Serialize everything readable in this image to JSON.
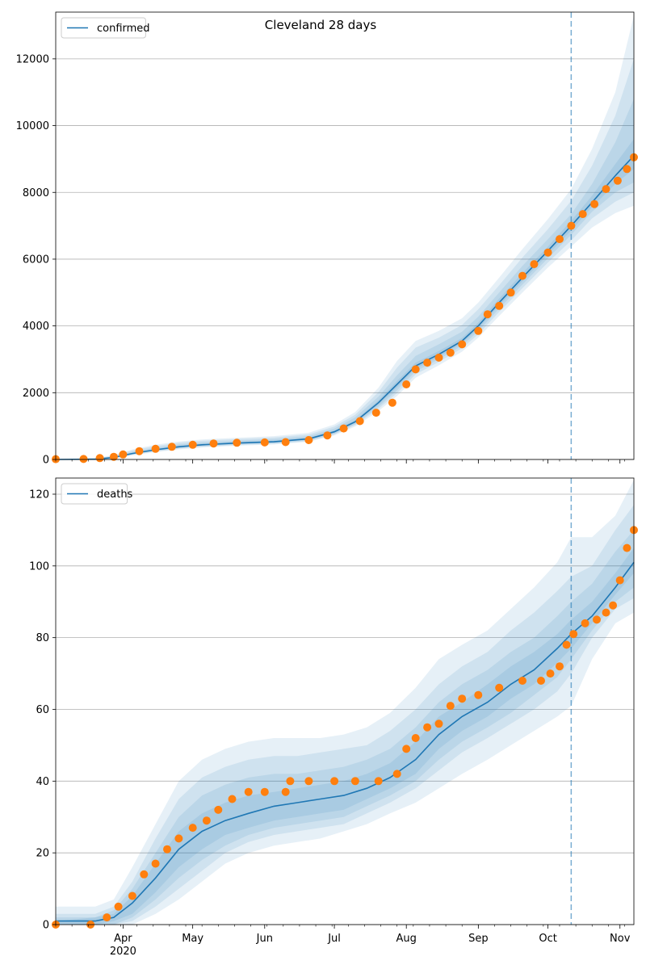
{
  "title": "Cleveland 28 days",
  "colors": {
    "model": "#1f77b4",
    "observed": "#ff7f0e",
    "band": "#1f77b4",
    "grid": "#b0b0b0",
    "vline": "#1f77b4"
  },
  "x_axis": {
    "range": [
      "2020-03-03",
      "2020-11-07"
    ],
    "tick_labels": [
      {
        "date": "2020-04-01",
        "label": "Apr",
        "sub": "2020"
      },
      {
        "date": "2020-05-01",
        "label": "May"
      },
      {
        "date": "2020-06-01",
        "label": "Jun"
      },
      {
        "date": "2020-07-01",
        "label": "Jul"
      },
      {
        "date": "2020-08-01",
        "label": "Aug"
      },
      {
        "date": "2020-09-01",
        "label": "Sep"
      },
      {
        "date": "2020-10-01",
        "label": "Oct"
      },
      {
        "date": "2020-11-01",
        "label": "Nov"
      }
    ],
    "forecast_start": "2020-10-11"
  },
  "chart_data": [
    {
      "type": "line",
      "legend": "confirmed",
      "legend_position": "top-left",
      "grid": "y",
      "ylim": [
        0,
        13400
      ],
      "yticks": [
        0,
        2000,
        4000,
        6000,
        8000,
        10000,
        12000
      ],
      "model_line": {
        "name": "confirmed",
        "dates": [
          "2020-03-03",
          "2020-03-20",
          "2020-03-28",
          "2020-04-05",
          "2020-04-15",
          "2020-04-25",
          "2020-05-05",
          "2020-05-20",
          "2020-06-05",
          "2020-06-20",
          "2020-07-01",
          "2020-07-10",
          "2020-07-20",
          "2020-07-28",
          "2020-08-05",
          "2020-08-15",
          "2020-08-25",
          "2020-09-01",
          "2020-09-10",
          "2020-09-20",
          "2020-10-01",
          "2020-10-11",
          "2020-10-20",
          "2020-10-30",
          "2020-11-07"
        ],
        "values": [
          0,
          10,
          60,
          180,
          290,
          380,
          440,
          490,
          530,
          620,
          830,
          1130,
          1700,
          2250,
          2800,
          3150,
          3550,
          4000,
          4700,
          5450,
          6250,
          7000,
          7700,
          8500,
          9100
        ]
      },
      "bands": [
        {
          "lower": [
            0,
            0,
            20,
            120,
            220,
            300,
            360,
            410,
            450,
            530,
            720,
            990,
            1450,
            1900,
            2450,
            2820,
            3230,
            3650,
            4300,
            5000,
            5750,
            6380,
            6950,
            7380,
            7600
          ],
          "upper": [
            0,
            40,
            130,
            300,
            440,
            540,
            600,
            650,
            700,
            800,
            1050,
            1420,
            2150,
            2950,
            3550,
            3850,
            4230,
            4700,
            5450,
            6300,
            7200,
            8100,
            9300,
            11000,
            13300
          ]
        },
        {
          "lower": [
            0,
            0,
            30,
            140,
            240,
            320,
            380,
            430,
            470,
            550,
            750,
            1030,
            1520,
            1990,
            2550,
            2920,
            3330,
            3750,
            4420,
            5130,
            5900,
            6560,
            7220,
            7720,
            8000
          ],
          "upper": [
            0,
            30,
            110,
            270,
            400,
            500,
            560,
            610,
            660,
            750,
            990,
            1340,
            2020,
            2750,
            3350,
            3650,
            4030,
            4500,
            5220,
            6050,
            6900,
            7750,
            8800,
            10300,
            12000
          ]
        },
        {
          "lower": [
            0,
            2,
            40,
            160,
            260,
            340,
            400,
            450,
            490,
            570,
            770,
            1060,
            1580,
            2070,
            2640,
            3000,
            3410,
            3840,
            4520,
            5240,
            6030,
            6730,
            7420,
            8000,
            8300
          ],
          "upper": [
            0,
            20,
            90,
            230,
            350,
            450,
            510,
            560,
            610,
            700,
            930,
            1260,
            1880,
            2520,
            3100,
            3450,
            3830,
            4280,
            5000,
            5800,
            6600,
            7350,
            8250,
            9500,
            10800
          ]
        },
        {
          "lower": [
            0,
            4,
            48,
            170,
            275,
            360,
            420,
            470,
            510,
            595,
            800,
            1095,
            1640,
            2160,
            2720,
            3070,
            3480,
            3920,
            4610,
            5340,
            6140,
            6860,
            7560,
            8250,
            8700
          ],
          "upper": [
            0,
            15,
            75,
            200,
            315,
            410,
            470,
            520,
            560,
            650,
            870,
            1180,
            1770,
            2350,
            2900,
            3250,
            3640,
            4100,
            4820,
            5580,
            6380,
            7150,
            7900,
            8850,
            9600
          ]
        }
      ],
      "observed": {
        "name": "",
        "dates": [
          "2020-03-03",
          "2020-03-15",
          "2020-03-22",
          "2020-03-28",
          "2020-04-01",
          "2020-04-08",
          "2020-04-15",
          "2020-04-22",
          "2020-05-01",
          "2020-05-10",
          "2020-05-20",
          "2020-06-01",
          "2020-06-10",
          "2020-06-20",
          "2020-06-28",
          "2020-07-05",
          "2020-07-12",
          "2020-07-19",
          "2020-07-26",
          "2020-08-01",
          "2020-08-05",
          "2020-08-10",
          "2020-08-15",
          "2020-08-20",
          "2020-08-25",
          "2020-09-01",
          "2020-09-05",
          "2020-09-10",
          "2020-09-15",
          "2020-09-20",
          "2020-09-25",
          "2020-10-01",
          "2020-10-06",
          "2020-10-11",
          "2020-10-16",
          "2020-10-21",
          "2020-10-26",
          "2020-10-31",
          "2020-11-04",
          "2020-11-07"
        ],
        "values": [
          10,
          15,
          40,
          80,
          150,
          250,
          320,
          380,
          440,
          480,
          500,
          510,
          520,
          580,
          720,
          930,
          1150,
          1400,
          1700,
          2250,
          2700,
          2900,
          3050,
          3200,
          3450,
          3850,
          4350,
          4600,
          5000,
          5500,
          5850,
          6200,
          6600,
          7000,
          7350,
          7650,
          8100,
          8350,
          8700,
          9050
        ]
      }
    },
    {
      "type": "line",
      "legend": "deaths",
      "legend_position": "top-left",
      "grid": "y",
      "ylim": [
        0,
        124.5
      ],
      "yticks": [
        0,
        20,
        40,
        60,
        80,
        100,
        120
      ],
      "model_line": {
        "name": "deaths",
        "dates": [
          "2020-03-03",
          "2020-03-20",
          "2020-03-28",
          "2020-04-05",
          "2020-04-15",
          "2020-04-25",
          "2020-05-05",
          "2020-05-15",
          "2020-05-25",
          "2020-06-05",
          "2020-06-15",
          "2020-06-25",
          "2020-07-05",
          "2020-07-15",
          "2020-07-25",
          "2020-08-05",
          "2020-08-15",
          "2020-08-25",
          "2020-09-05",
          "2020-09-15",
          "2020-09-25",
          "2020-10-05",
          "2020-10-11",
          "2020-10-20",
          "2020-10-30",
          "2020-11-07"
        ],
        "values": [
          1,
          1,
          2,
          6,
          13,
          21,
          26,
          29,
          31,
          33,
          34,
          35,
          36,
          38,
          41,
          46,
          53,
          58,
          62,
          67,
          71,
          77,
          81,
          86,
          94,
          101
        ]
      },
      "bands": [
        {
          "lower": [
            0,
            0,
            0,
            0,
            3,
            7,
            12,
            17,
            20,
            22,
            23,
            24,
            26,
            28,
            31,
            34,
            38,
            42,
            46,
            50,
            54,
            58,
            61,
            74,
            84,
            87
          ],
          "upper": [
            5,
            5,
            7,
            16,
            28,
            40,
            46,
            49,
            51,
            52,
            52,
            52,
            53,
            55,
            59,
            66,
            74,
            78,
            82,
            88,
            94,
            101,
            108,
            108,
            114,
            124
          ]
        },
        {
          "lower": [
            0,
            0,
            0,
            1,
            5,
            10,
            15,
            20,
            23,
            25,
            26,
            27,
            28,
            31,
            34,
            38,
            43,
            48,
            52,
            56,
            60,
            65,
            70,
            80,
            88,
            91
          ],
          "upper": [
            3,
            3,
            5,
            12,
            24,
            35,
            41,
            44,
            46,
            47,
            47,
            48,
            49,
            50,
            54,
            60,
            67,
            72,
            76,
            82,
            87,
            93,
            97,
            100,
            110,
            117
          ]
        },
        {
          "lower": [
            0,
            0,
            0,
            2,
            7,
            13,
            18,
            22,
            25,
            27,
            28,
            29,
            30,
            33,
            36,
            40,
            46,
            51,
            55,
            59,
            64,
            69,
            74,
            82,
            90,
            94
          ],
          "upper": [
            2,
            2,
            4,
            10,
            20,
            30,
            36,
            39,
            41,
            42,
            42,
            43,
            44,
            46,
            49,
            55,
            62,
            67,
            71,
            76,
            80,
            86,
            90,
            95,
            104,
            110
          ]
        },
        {
          "lower": [
            0,
            0,
            1,
            3,
            9,
            16,
            21,
            25,
            27,
            29,
            30,
            31,
            32,
            35,
            38,
            42,
            49,
            54,
            58,
            63,
            67,
            73,
            77,
            84,
            92,
            98
          ],
          "upper": [
            1,
            2,
            3,
            8,
            17,
            26,
            31,
            34,
            36,
            37,
            38,
            39,
            40,
            42,
            45,
            51,
            58,
            62,
            67,
            72,
            76,
            81,
            85,
            90,
            98,
            105
          ]
        }
      ],
      "observed": {
        "name": "",
        "dates": [
          "2020-03-03",
          "2020-03-18",
          "2020-03-25",
          "2020-03-30",
          "2020-04-05",
          "2020-04-10",
          "2020-04-15",
          "2020-04-20",
          "2020-04-25",
          "2020-05-01",
          "2020-05-07",
          "2020-05-12",
          "2020-05-18",
          "2020-05-25",
          "2020-06-01",
          "2020-06-10",
          "2020-06-12",
          "2020-06-20",
          "2020-07-01",
          "2020-07-10",
          "2020-07-20",
          "2020-07-28",
          "2020-08-01",
          "2020-08-05",
          "2020-08-10",
          "2020-08-15",
          "2020-08-20",
          "2020-08-25",
          "2020-09-01",
          "2020-09-10",
          "2020-09-20",
          "2020-09-28",
          "2020-10-02",
          "2020-10-06",
          "2020-10-09",
          "2020-10-12",
          "2020-10-17",
          "2020-10-22",
          "2020-10-26",
          "2020-10-29",
          "2020-11-01",
          "2020-11-04",
          "2020-11-07"
        ],
        "values": [
          0,
          0,
          2,
          5,
          8,
          14,
          17,
          21,
          24,
          27,
          29,
          32,
          35,
          37,
          37,
          37,
          40,
          40,
          40,
          40,
          40,
          42,
          49,
          52,
          55,
          56,
          61,
          63,
          64,
          66,
          68,
          68,
          70,
          72,
          78,
          81,
          84,
          85,
          87,
          89,
          96,
          105,
          110
        ]
      }
    }
  ]
}
